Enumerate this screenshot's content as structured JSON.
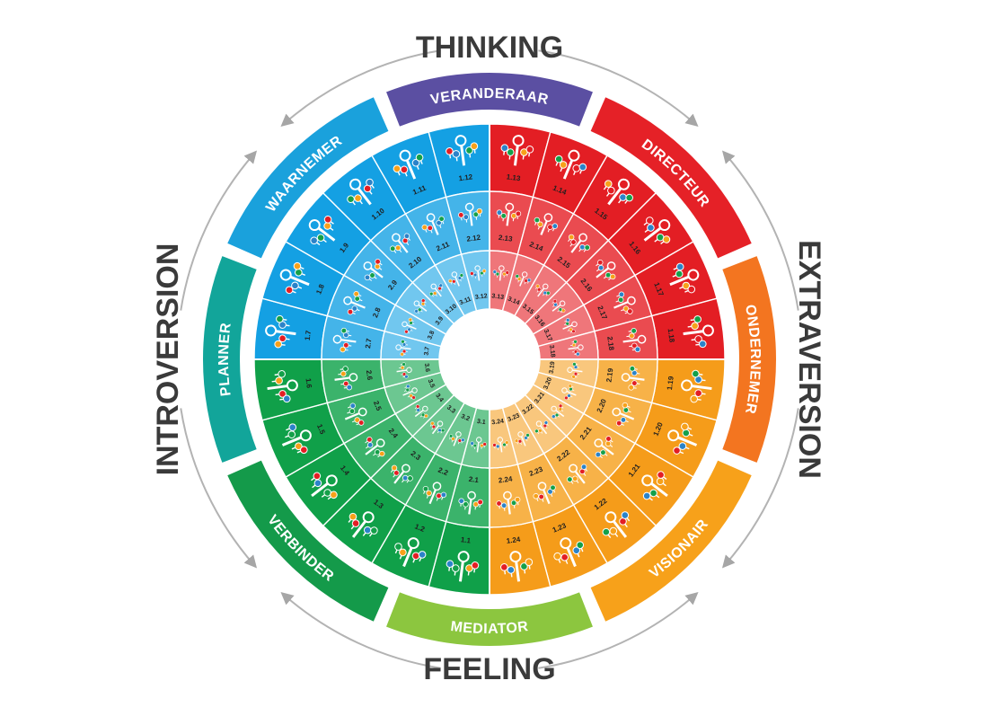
{
  "axes": {
    "top": "THINKING",
    "bottom": "FEELING",
    "left": "INTROVERSION",
    "right": "EXTRAVERSION"
  },
  "outer_types": [
    {
      "name": "VERANDERAAR",
      "color": "#5b4fa2"
    },
    {
      "name": "DIRECTEUR",
      "color": "#e52127"
    },
    {
      "name": "ONDERNEMER",
      "color": "#f37520"
    },
    {
      "name": "VISIONAIR",
      "color": "#f7a11a"
    },
    {
      "name": "MEDIATOR",
      "color": "#8cc63f"
    },
    {
      "name": "VERBINDER",
      "color": "#149a4a"
    },
    {
      "name": "PLANNER",
      "color": "#12a59a"
    },
    {
      "name": "WAARNEMER",
      "color": "#1aa1dc"
    }
  ],
  "quadrant_colors": {
    "blue": [
      "#14a0e3",
      "#44b4e9",
      "#71c7ef"
    ],
    "red": [
      "#e31e24",
      "#ea4b50",
      "#ef767a"
    ],
    "orange": [
      "#f59c1a",
      "#f7b248",
      "#f9c77d"
    ],
    "green": [
      "#10a049",
      "#3bb36b",
      "#6cc791"
    ]
  },
  "rings": [
    {
      "ring": "outer",
      "labels": [
        "1.1",
        "1.2",
        "1.3",
        "1.4",
        "1.5",
        "1.6",
        "1.7",
        "1.8",
        "1.9",
        "1.10",
        "1.11",
        "1.12",
        "1.13",
        "1.14",
        "1.15",
        "1.16",
        "1.17",
        "1.18",
        "1.19",
        "1.20",
        "1.21",
        "1.22",
        "1.23",
        "1.24"
      ]
    },
    {
      "ring": "middle",
      "labels": [
        "2.1",
        "2.2",
        "2.3",
        "2.4",
        "2.5",
        "2.6",
        "2.7",
        "2.8",
        "2.9",
        "2.10",
        "2.11",
        "2.12",
        "2.13",
        "2.14",
        "2.15",
        "2.16",
        "2.17",
        "2.18",
        "2.19",
        "2.20",
        "2.21",
        "2.22",
        "2.23",
        "2.24"
      ]
    },
    {
      "ring": "inner",
      "labels": [
        "3.1",
        "3.2",
        "3.3",
        "3.4",
        "3.5",
        "3.6",
        "3.7",
        "3.8",
        "3.9",
        "3.10",
        "3.11",
        "3.12",
        "3.13",
        "3.14",
        "3.15",
        "3.16",
        "3.17",
        "3.18",
        "3.19",
        "3.20",
        "3.21",
        "3.22",
        "3.23",
        "3.24"
      ]
    }
  ],
  "dot_colors": [
    "#2b83c9",
    "#14a049",
    "#f7a11a",
    "#e31e24"
  ]
}
